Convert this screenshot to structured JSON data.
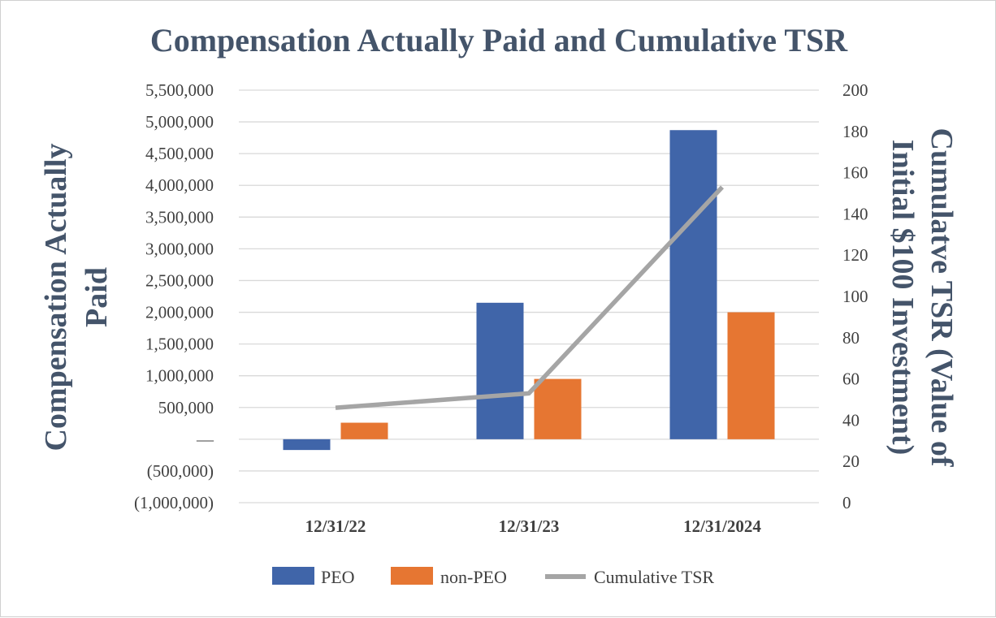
{
  "chart_data": {
    "type": "bar",
    "title": "Compensation Actually Paid and Cumulative TSR",
    "categories": [
      "12/31/22",
      "12/31/23",
      "12/31/2024"
    ],
    "series": [
      {
        "name": "PEO",
        "type": "bar",
        "axis": "left",
        "color": "#4065a9",
        "values": [
          -170000,
          2150000,
          4870000
        ]
      },
      {
        "name": "non-PEO",
        "type": "bar",
        "axis": "left",
        "color": "#e67632",
        "values": [
          260000,
          950000,
          2000000
        ]
      },
      {
        "name": "Cumulative TSR",
        "type": "line",
        "axis": "right",
        "color": "#a5a5a5",
        "values": [
          46,
          53,
          153
        ]
      }
    ],
    "ylabel": "Compensation Actually Paid",
    "ylabel_lines": [
      "Compensation Actually",
      "Paid"
    ],
    "ylim": [
      -1000000,
      5500000
    ],
    "yticks": [
      {
        "value": 5500000,
        "label": "5,500,000"
      },
      {
        "value": 5000000,
        "label": "5,000,000"
      },
      {
        "value": 4500000,
        "label": "4,500,000"
      },
      {
        "value": 4000000,
        "label": "4,000,000"
      },
      {
        "value": 3500000,
        "label": "3,500,000"
      },
      {
        "value": 3000000,
        "label": "3,000,000"
      },
      {
        "value": 2500000,
        "label": "2,500,000"
      },
      {
        "value": 2000000,
        "label": "2,000,000"
      },
      {
        "value": 1500000,
        "label": "1,500,000"
      },
      {
        "value": 1000000,
        "label": "1,000,000"
      },
      {
        "value": 500000,
        "label": "500,000"
      },
      {
        "value": 0,
        "label": "—"
      },
      {
        "value": -500000,
        "label": "(500,000)"
      },
      {
        "value": -1000000,
        "label": "(1,000,000)"
      }
    ],
    "y2label": "Cumulatve TSR (Value of Initial $100 Investment)",
    "y2label_lines": [
      "Cumulatve TSR (Value of",
      "Initial $100 Investment)"
    ],
    "y2lim": [
      0,
      200
    ],
    "y2ticks": [
      0,
      20,
      40,
      60,
      80,
      100,
      120,
      140,
      160,
      180,
      200
    ],
    "grid": true,
    "legend_position": "bottom",
    "colors": {
      "title": "#44546a",
      "axis_title": "#44546a",
      "tick": "#404040",
      "gridline": "#d9d9d9"
    }
  }
}
